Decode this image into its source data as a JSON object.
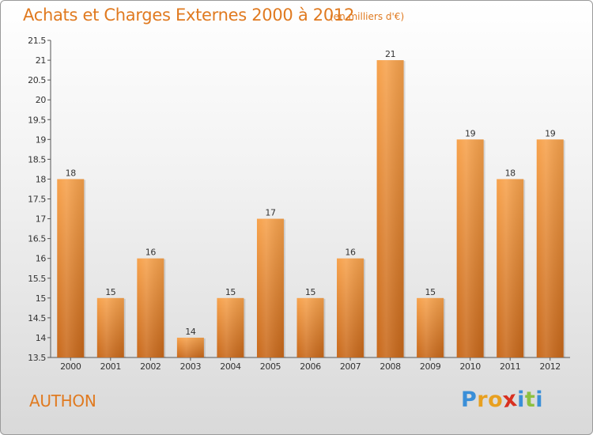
{
  "title": "Achats et Charges Externes 2000 à 2012",
  "subtitle": "(en milliers d'€)",
  "place": "AUTHON",
  "logo": {
    "letters": [
      "P",
      "r",
      "o",
      "x",
      "i",
      "t",
      "i"
    ]
  },
  "colors": {
    "accent": "#e07a20",
    "bar_top": "#f7a24c",
    "bar_bottom": "#c8681a",
    "logo": [
      "#3a8fd8",
      "#e8a020",
      "#e8a020",
      "#d83020",
      "#3a8fd8",
      "#8cc040",
      "#3a8fd8"
    ]
  },
  "chart_data": {
    "type": "bar",
    "categories": [
      "2000",
      "2001",
      "2002",
      "2003",
      "2004",
      "2005",
      "2006",
      "2007",
      "2008",
      "2009",
      "2010",
      "2011",
      "2012"
    ],
    "values": [
      18,
      15,
      16,
      14,
      15,
      17,
      15,
      16,
      21,
      15,
      19,
      18,
      19
    ],
    "value_labels": [
      "18",
      "15",
      "16",
      "14",
      "15",
      "17",
      "15",
      "16",
      "21",
      "15",
      "19",
      "18",
      "19"
    ],
    "ylim": [
      13.5,
      21.5
    ],
    "yticks": [
      "13.5",
      "14",
      "14.5",
      "15",
      "15.5",
      "16",
      "16.5",
      "17",
      "17.5",
      "18",
      "18.5",
      "19",
      "19.5",
      "20",
      "20.5",
      "21",
      "21.5"
    ],
    "grid": false,
    "legend": "none"
  }
}
